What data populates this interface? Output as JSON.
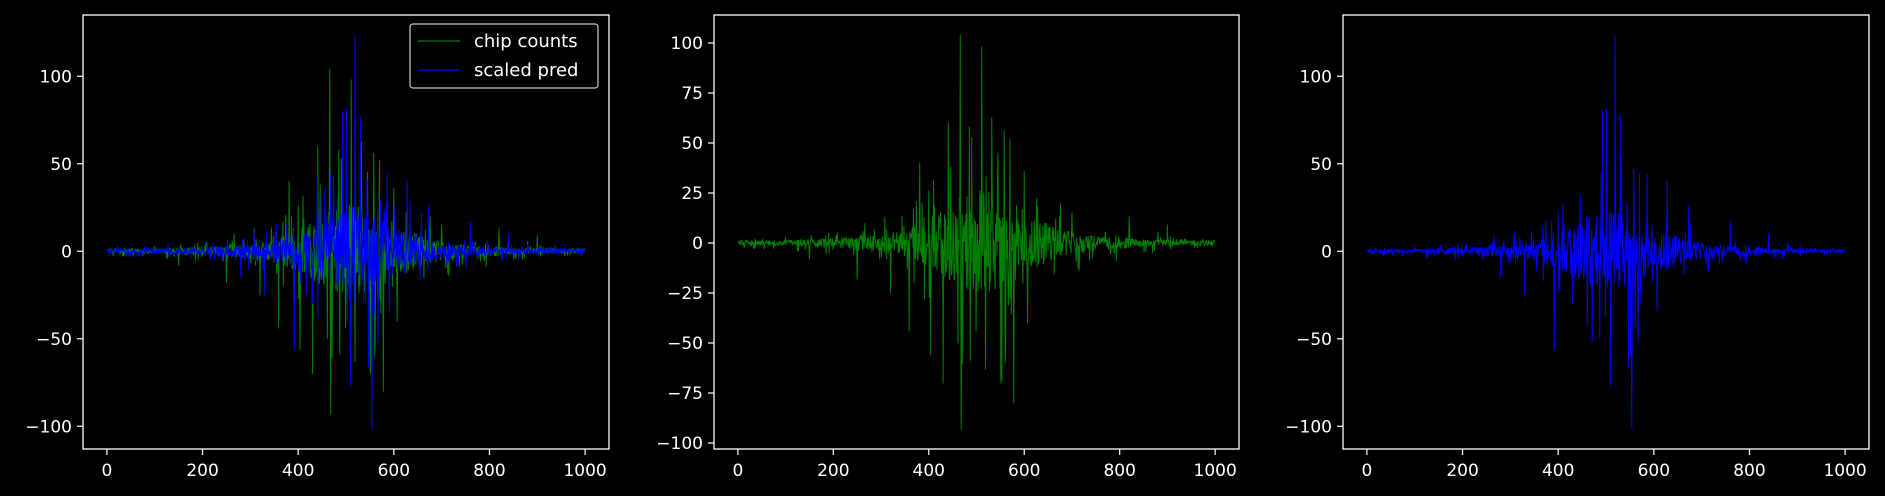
{
  "figure": {
    "background": "#000000",
    "foreground": "#ffffff"
  },
  "chart_data": [
    {
      "type": "line",
      "title": "",
      "xlabel": "",
      "ylabel": "",
      "xlim": [
        -50,
        1050
      ],
      "ylim": [
        -113,
        135
      ],
      "xticks": [
        0,
        200,
        400,
        600,
        800,
        1000
      ],
      "yticks": [
        -100,
        -50,
        0,
        50,
        100
      ],
      "grid": false,
      "legend": {
        "position": "top-right",
        "entries": [
          "chip counts",
          "scaled pred"
        ]
      },
      "series": [
        {
          "name": "chip counts",
          "color": "#008000",
          "n_points": 1000,
          "x_range": [
            0,
            999
          ],
          "y_min": -93,
          "y_max": 104,
          "peaks": [
            {
              "x": 441,
              "y": 60
            },
            {
              "x": 466,
              "y": 104
            },
            {
              "x": 468,
              "y": -93
            },
            {
              "x": 485,
              "y": 58
            },
            {
              "x": 511,
              "y": 98
            },
            {
              "x": 519,
              "y": -63
            },
            {
              "x": 545,
              "y": 45
            },
            {
              "x": 560,
              "y": -60
            },
            {
              "x": 578,
              "y": -80
            },
            {
              "x": 600,
              "y": 36
            },
            {
              "x": 430,
              "y": -70
            },
            {
              "x": 404,
              "y": -56
            },
            {
              "x": 359,
              "y": -44
            },
            {
              "x": 381,
              "y": 40
            },
            {
              "x": 700,
              "y": 15
            },
            {
              "x": 320,
              "y": -25
            },
            {
              "x": 250,
              "y": -18
            },
            {
              "x": 820,
              "y": 13
            },
            {
              "x": 900,
              "y": 9
            },
            {
              "x": 150,
              "y": -8
            }
          ]
        },
        {
          "name": "scaled pred",
          "color": "#0000ff",
          "n_points": 1000,
          "x_range": [
            0,
            999
          ],
          "y_min": -101,
          "y_max": 123,
          "peaks": [
            {
              "x": 519,
              "y": 123
            },
            {
              "x": 493,
              "y": 80
            },
            {
              "x": 501,
              "y": 81
            },
            {
              "x": 530,
              "y": 77
            },
            {
              "x": 554,
              "y": -101
            },
            {
              "x": 510,
              "y": -77
            },
            {
              "x": 547,
              "y": -66
            },
            {
              "x": 567,
              "y": -52
            },
            {
              "x": 586,
              "y": 44
            },
            {
              "x": 628,
              "y": 40
            },
            {
              "x": 673,
              "y": 26
            },
            {
              "x": 392,
              "y": -55
            },
            {
              "x": 430,
              "y": -30
            },
            {
              "x": 460,
              "y": 20
            },
            {
              "x": 760,
              "y": 17
            },
            {
              "x": 840,
              "y": 10
            },
            {
              "x": 330,
              "y": -25
            },
            {
              "x": 280,
              "y": -15
            }
          ]
        }
      ]
    },
    {
      "type": "line",
      "title": "",
      "xlabel": "",
      "ylabel": "",
      "xlim": [
        -50,
        1050
      ],
      "ylim": [
        -103,
        114
      ],
      "xticks": [
        0,
        200,
        400,
        600,
        800,
        1000
      ],
      "yticks": [
        -100,
        -75,
        -50,
        -25,
        0,
        25,
        50,
        75,
        100
      ],
      "grid": false,
      "legend": null,
      "series": [
        {
          "color": "#008000",
          "n_points": 1000,
          "x_range": [
            0,
            999
          ],
          "y_min": -93,
          "y_max": 104,
          "peaks": [
            {
              "x": 441,
              "y": 60
            },
            {
              "x": 466,
              "y": 104
            },
            {
              "x": 468,
              "y": -93
            },
            {
              "x": 485,
              "y": 58
            },
            {
              "x": 511,
              "y": 98
            },
            {
              "x": 519,
              "y": -63
            },
            {
              "x": 545,
              "y": 45
            },
            {
              "x": 560,
              "y": -60
            },
            {
              "x": 578,
              "y": -80
            },
            {
              "x": 600,
              "y": 36
            },
            {
              "x": 430,
              "y": -70
            },
            {
              "x": 404,
              "y": -56
            },
            {
              "x": 359,
              "y": -44
            },
            {
              "x": 381,
              "y": 40
            },
            {
              "x": 700,
              "y": 15
            },
            {
              "x": 320,
              "y": -25
            },
            {
              "x": 250,
              "y": -18
            },
            {
              "x": 820,
              "y": 13
            },
            {
              "x": 900,
              "y": 9
            },
            {
              "x": 150,
              "y": -8
            }
          ]
        }
      ]
    },
    {
      "type": "line",
      "title": "",
      "xlabel": "",
      "ylabel": "",
      "xlim": [
        -50,
        1050
      ],
      "ylim": [
        -113,
        135
      ],
      "xticks": [
        0,
        200,
        400,
        600,
        800,
        1000
      ],
      "yticks": [
        -100,
        -50,
        0,
        50,
        100
      ],
      "grid": false,
      "legend": null,
      "series": [
        {
          "color": "#0000ff",
          "n_points": 1000,
          "x_range": [
            0,
            999
          ],
          "y_min": -101,
          "y_max": 123,
          "peaks": [
            {
              "x": 519,
              "y": 123
            },
            {
              "x": 493,
              "y": 80
            },
            {
              "x": 501,
              "y": 81
            },
            {
              "x": 530,
              "y": 77
            },
            {
              "x": 554,
              "y": -101
            },
            {
              "x": 510,
              "y": -77
            },
            {
              "x": 547,
              "y": -66
            },
            {
              "x": 567,
              "y": -52
            },
            {
              "x": 586,
              "y": 44
            },
            {
              "x": 628,
              "y": 40
            },
            {
              "x": 673,
              "y": 26
            },
            {
              "x": 392,
              "y": -55
            },
            {
              "x": 430,
              "y": -30
            },
            {
              "x": 460,
              "y": 20
            },
            {
              "x": 760,
              "y": 17
            },
            {
              "x": 840,
              "y": 10
            },
            {
              "x": 330,
              "y": -25
            },
            {
              "x": 280,
              "y": -15
            }
          ]
        }
      ]
    }
  ]
}
